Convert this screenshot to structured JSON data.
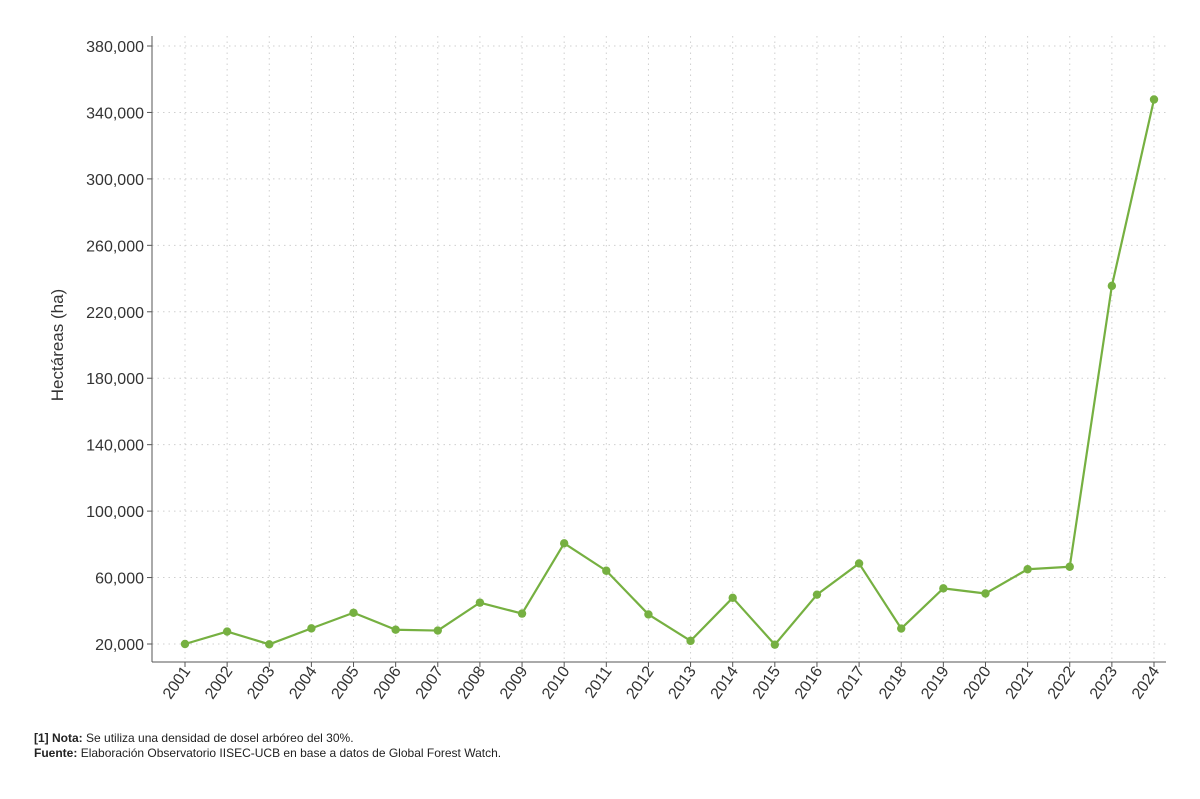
{
  "chart_data": {
    "type": "line",
    "title": "",
    "xlabel": "",
    "ylabel": "Hectáreas (ha)",
    "ylim": [
      20000,
      380000
    ],
    "yticks": [
      20000,
      60000,
      100000,
      140000,
      180000,
      220000,
      260000,
      300000,
      340000,
      380000
    ],
    "ytick_labels": [
      "20,000",
      "60,000",
      "100,000",
      "140,000",
      "180,000",
      "220,000",
      "260,000",
      "300,000",
      "340,000",
      "380,000"
    ],
    "grid": true,
    "line_color": "#76b041",
    "categories": [
      "2001",
      "2002",
      "2003",
      "2004",
      "2005",
      "2006",
      "2007",
      "2008",
      "2009",
      "2010",
      "2011",
      "2012",
      "2013",
      "2014",
      "2015",
      "2016",
      "2017",
      "2018",
      "2019",
      "2020",
      "2021",
      "2022",
      "2023",
      "2024"
    ],
    "series": [
      {
        "values": [
          20000,
          27500,
          19800,
          29400,
          38800,
          28600,
          28100,
          44900,
          38300,
          80600,
          64100,
          37800,
          21900,
          47800,
          19600,
          49700,
          68500,
          29300,
          53500,
          50400,
          65000,
          66500,
          235600,
          347800
        ]
      }
    ]
  },
  "footer": {
    "note_label": "[1] Nota:",
    "note_text": "Se utiliza una densidad de dosel arbóreo del 30%.",
    "source_label": "Fuente:",
    "source_text": "Elaboración Observatorio IISEC-UCB en base a datos de Global Forest Watch."
  }
}
